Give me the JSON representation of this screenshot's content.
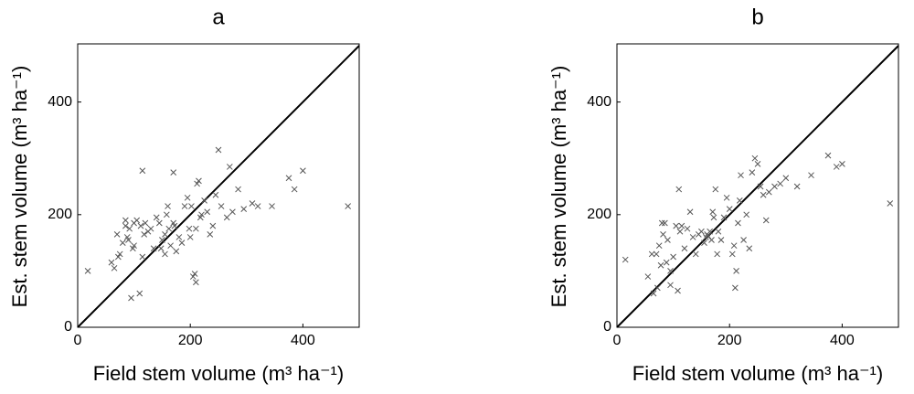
{
  "chart_data": [
    {
      "type": "scatter",
      "title": "a",
      "x_label": "Field stem volume (m³ ha⁻¹)",
      "y_label": "Est. stem volume (m³ ha⁻¹)",
      "xlim": [
        0,
        500
      ],
      "ylim": [
        0,
        500
      ],
      "xticks": [
        0,
        200,
        400
      ],
      "yticks": [
        0,
        200,
        400
      ],
      "marker": "x",
      "color": "#555555",
      "reference_line": true,
      "x": [
        18,
        60,
        65,
        70,
        72,
        75,
        80,
        85,
        85,
        88,
        90,
        92,
        95,
        98,
        100,
        100,
        105,
        110,
        112,
        115,
        115,
        118,
        120,
        125,
        130,
        135,
        140,
        145,
        148,
        150,
        155,
        155,
        158,
        160,
        162,
        165,
        170,
        170,
        172,
        175,
        180,
        185,
        190,
        195,
        198,
        200,
        202,
        205,
        208,
        210,
        210,
        212,
        215,
        218,
        220,
        225,
        230,
        235,
        240,
        245,
        250,
        255,
        265,
        270,
        275,
        285,
        295,
        310,
        320,
        345,
        375,
        385,
        400,
        480
      ],
      "values": [
        100,
        115,
        105,
        165,
        125,
        130,
        150,
        190,
        180,
        160,
        155,
        175,
        52,
        140,
        145,
        185,
        190,
        60,
        180,
        278,
        125,
        165,
        185,
        170,
        175,
        140,
        195,
        185,
        140,
        155,
        130,
        165,
        200,
        215,
        175,
        145,
        275,
        185,
        180,
        135,
        160,
        150,
        215,
        230,
        175,
        160,
        215,
        90,
        95,
        80,
        175,
        255,
        260,
        195,
        200,
        225,
        205,
        165,
        180,
        235,
        315,
        215,
        195,
        285,
        205,
        245,
        210,
        220,
        215,
        215,
        265,
        245,
        278,
        215
      ]
    },
    {
      "type": "scatter",
      "title": "b",
      "x_label": "Field stem volume (m³ ha⁻¹)",
      "y_label": "Est. stem volume (m³ ha⁻¹)",
      "xlim": [
        0,
        500
      ],
      "ylim": [
        0,
        500
      ],
      "xticks": [
        0,
        200,
        400
      ],
      "yticks": [
        0,
        200,
        400
      ],
      "marker": "x",
      "color": "#555555",
      "reference_line": true,
      "x": [
        15,
        55,
        62,
        65,
        70,
        72,
        75,
        78,
        80,
        82,
        85,
        88,
        90,
        95,
        95,
        100,
        105,
        108,
        110,
        112,
        115,
        120,
        125,
        130,
        135,
        140,
        145,
        150,
        155,
        158,
        160,
        162,
        165,
        168,
        170,
        172,
        175,
        178,
        180,
        185,
        190,
        195,
        200,
        205,
        208,
        210,
        212,
        215,
        218,
        220,
        225,
        230,
        235,
        240,
        245,
        250,
        255,
        260,
        265,
        270,
        280,
        290,
        300,
        320,
        345,
        375,
        390,
        400,
        485
      ],
      "values": [
        120,
        90,
        130,
        60,
        130,
        70,
        145,
        110,
        185,
        165,
        185,
        115,
        155,
        100,
        75,
        125,
        180,
        65,
        245,
        170,
        180,
        140,
        175,
        205,
        160,
        130,
        165,
        170,
        150,
        160,
        165,
        162,
        170,
        155,
        205,
        195,
        245,
        130,
        170,
        155,
        195,
        230,
        210,
        130,
        145,
        70,
        100,
        185,
        225,
        270,
        155,
        200,
        140,
        275,
        300,
        290,
        250,
        235,
        190,
        240,
        250,
        255,
        265,
        250,
        270,
        305,
        285,
        290,
        220
      ]
    }
  ]
}
